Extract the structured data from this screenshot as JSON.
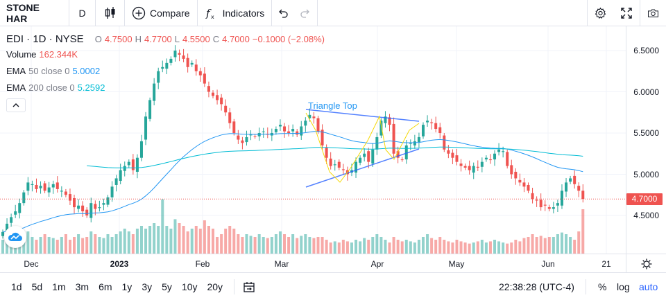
{
  "toolbar": {
    "symbol": "STONE HAR",
    "interval": "D",
    "compare_label": "Compare",
    "indicators_label": "Indicators"
  },
  "legend": {
    "symbol_line": "EDI · 1D · NYSE",
    "open_label": "O",
    "open": "4.7500",
    "high_label": "H",
    "high": "4.7700",
    "low_label": "L",
    "low": "4.5500",
    "close_label": "C",
    "close": "4.7000",
    "change": "−0.1000 (−2.08%)",
    "volume_label": "Volume",
    "volume": "162.344K",
    "ema50_label": "EMA",
    "ema50_params": "50 close 0",
    "ema50_value": "5.0002",
    "ema200_label": "EMA",
    "ema200_params": "200 close 0",
    "ema200_value": "5.2592"
  },
  "price_axis": {
    "labels": [
      "6.5000",
      "6.0000",
      "5.5000",
      "5.0000",
      "4.5000"
    ],
    "last_price": "4.7000"
  },
  "time_axis": {
    "labels": [
      "Dec",
      "2023",
      "Feb",
      "Mar",
      "Apr",
      "May",
      "Jun",
      "21"
    ]
  },
  "pattern": {
    "label": "Triangle Top"
  },
  "bottombar": {
    "ranges": [
      "1d",
      "5d",
      "1m",
      "3m",
      "6m",
      "1y",
      "3y",
      "5y",
      "10y",
      "20y"
    ],
    "clock": "22:38:28 (UTC-4)",
    "percent_label": "%",
    "log_label": "log",
    "auto_label": "auto"
  },
  "colors": {
    "up": "#26a69a",
    "down": "#ef5350",
    "ema50": "#2196f3",
    "ema200": "#00bcd4",
    "accent": "#2962ff"
  },
  "chart_data": {
    "type": "candlestick",
    "ylim": [
      4.05,
      6.8
    ],
    "closes": [
      4.3,
      4.4,
      4.48,
      4.55,
      4.65,
      4.78,
      4.9,
      4.88,
      4.82,
      4.86,
      4.8,
      4.84,
      4.88,
      4.82,
      4.8,
      4.75,
      4.68,
      4.6,
      4.62,
      4.55,
      4.5,
      4.65,
      4.58,
      4.6,
      4.65,
      4.72,
      4.85,
      4.95,
      5.05,
      5.1,
      5.15,
      5.05,
      5.2,
      5.4,
      5.7,
      5.9,
      6.1,
      6.25,
      6.3,
      6.35,
      6.4,
      6.5,
      6.45,
      6.4,
      6.3,
      6.35,
      6.25,
      6.2,
      6.1,
      6.0,
      5.95,
      5.9,
      5.85,
      5.75,
      5.62,
      5.5,
      5.42,
      5.38,
      5.45,
      5.48,
      5.46,
      5.5,
      5.52,
      5.48,
      5.5,
      5.55,
      5.6,
      5.52,
      5.5,
      5.55,
      5.48,
      5.58,
      5.65,
      5.72,
      5.68,
      5.52,
      5.35,
      5.2,
      5.1,
      5.12,
      5.08,
      5.05,
      5.0,
      5.05,
      5.15,
      5.2,
      5.25,
      5.15,
      5.3,
      5.45,
      5.65,
      5.7,
      5.6,
      5.25,
      5.2,
      5.18,
      5.35,
      5.38,
      5.4,
      5.45,
      5.6,
      5.65,
      5.62,
      5.55,
      5.5,
      5.3,
      5.25,
      5.2,
      5.15,
      5.1,
      5.08,
      5.05,
      5.1,
      5.08,
      5.15,
      5.2,
      5.18,
      5.25,
      5.3,
      5.28,
      5.1,
      5.0,
      4.95,
      4.9,
      4.85,
      4.8,
      4.7,
      4.68,
      4.6,
      4.62,
      4.58,
      4.6,
      4.65,
      4.8,
      4.9,
      4.95,
      4.88,
      4.8,
      4.7
    ],
    "volumes": [
      0.25,
      0.3,
      0.35,
      0.28,
      0.3,
      0.35,
      0.4,
      0.3,
      0.25,
      0.3,
      0.35,
      0.3,
      0.28,
      0.25,
      0.3,
      0.35,
      0.25,
      0.3,
      0.35,
      0.28,
      0.3,
      0.4,
      0.35,
      0.3,
      0.28,
      0.35,
      0.3,
      0.35,
      0.4,
      0.45,
      0.4,
      0.35,
      0.45,
      0.5,
      0.45,
      0.5,
      0.55,
      0.5,
      0.98,
      0.5,
      0.45,
      0.62,
      0.55,
      0.5,
      0.4,
      0.45,
      0.5,
      0.45,
      0.6,
      0.5,
      0.45,
      0.3,
      0.35,
      0.45,
      0.5,
      0.45,
      0.35,
      0.3,
      0.35,
      0.32,
      0.3,
      0.35,
      0.3,
      0.28,
      0.3,
      0.35,
      0.4,
      0.35,
      0.3,
      0.35,
      0.28,
      0.32,
      0.35,
      0.3,
      0.28,
      0.3,
      0.3,
      0.25,
      0.2,
      0.22,
      0.2,
      0.25,
      0.22,
      0.2,
      0.25,
      0.22,
      0.28,
      0.25,
      0.3,
      0.35,
      0.3,
      0.25,
      0.2,
      0.3,
      0.25,
      0.22,
      0.25,
      0.22,
      0.2,
      0.25,
      0.3,
      0.35,
      0.28,
      0.25,
      0.3,
      0.25,
      0.22,
      0.2,
      0.25,
      0.22,
      0.2,
      0.18,
      0.2,
      0.22,
      0.25,
      0.2,
      0.22,
      0.25,
      0.22,
      0.2,
      0.18,
      0.2,
      0.25,
      0.22,
      0.28,
      0.3,
      0.35,
      0.3,
      0.32,
      0.28,
      0.3,
      0.3,
      0.35,
      0.38,
      0.35,
      0.3,
      0.25,
      0.4,
      0.8
    ]
  }
}
